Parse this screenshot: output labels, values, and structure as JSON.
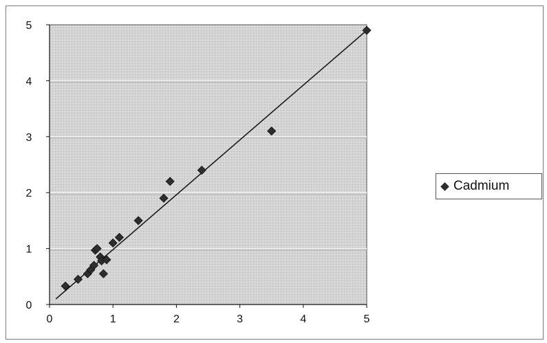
{
  "chart_data": {
    "type": "scatter",
    "title": "",
    "xlabel": "",
    "ylabel": "",
    "xlim": [
      0,
      5
    ],
    "ylim": [
      0,
      5
    ],
    "xticks": [
      "0",
      "1",
      "2",
      "3",
      "4",
      "5"
    ],
    "yticks": [
      "0",
      "1",
      "2",
      "3",
      "4",
      "5"
    ],
    "grid": "horizontal",
    "legend_position": "right",
    "series": [
      {
        "name": "Cadmium",
        "color": "#2e2e2e",
        "marker": "diamond",
        "x": [
          0.25,
          0.45,
          0.6,
          0.65,
          0.7,
          0.72,
          0.75,
          0.8,
          0.82,
          0.85,
          0.9,
          1.0,
          1.1,
          1.4,
          1.8,
          1.9,
          2.4,
          3.5,
          5.0
        ],
        "y": [
          0.33,
          0.45,
          0.55,
          0.62,
          0.7,
          0.97,
          1.0,
          0.85,
          0.78,
          0.55,
          0.8,
          1.1,
          1.2,
          1.5,
          1.9,
          2.2,
          2.4,
          3.1,
          4.9
        ]
      }
    ],
    "trendline": {
      "x": [
        0.1,
        5.0
      ],
      "y": [
        0.1,
        4.9
      ],
      "color": "#1a1a1a"
    }
  }
}
